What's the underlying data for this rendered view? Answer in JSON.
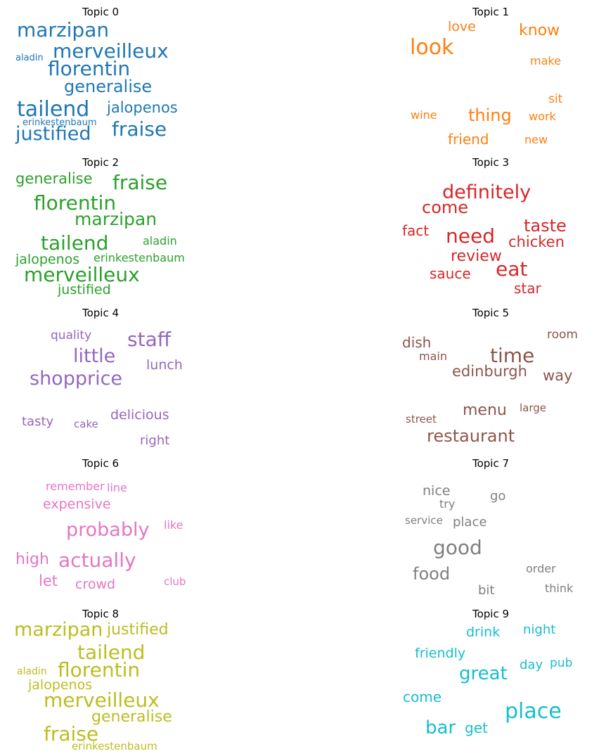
{
  "chart_data": {
    "type": "wordcloud",
    "layout": "5 rows x 2 columns",
    "panels": [
      {
        "title": "Topic 0",
        "color": "#1f77b4",
        "words": [
          "marzipan",
          "merveilleux",
          "florentin",
          "generalise",
          "tailend",
          "jalopenos",
          "fraise",
          "justified",
          "aladin",
          "erinkestenbaum"
        ]
      },
      {
        "title": "Topic 1",
        "color": "#ff7f0e",
        "words": [
          "look",
          "love",
          "know",
          "make",
          "sit",
          "thing",
          "wine",
          "work",
          "friend",
          "new"
        ]
      },
      {
        "title": "Topic 2",
        "color": "#2ca02c",
        "words": [
          "fraise",
          "generalise",
          "florentin",
          "marzipan",
          "tailend",
          "aladin",
          "jalopenos",
          "erinkestenbaum",
          "merveilleux",
          "justified"
        ]
      },
      {
        "title": "Topic 3",
        "color": "#d62728",
        "words": [
          "definitely",
          "come",
          "taste",
          "fact",
          "need",
          "chicken",
          "review",
          "eat",
          "sauce",
          "star"
        ]
      },
      {
        "title": "Topic 4",
        "color": "#9467bd",
        "words": [
          "quality",
          "staff",
          "little",
          "lunch",
          "shopprice",
          "delicious",
          "tasty",
          "cake",
          "right"
        ]
      },
      {
        "title": "Topic 5",
        "color": "#8c564b",
        "words": [
          "room",
          "dish",
          "main",
          "time",
          "edinburgh",
          "way",
          "menu",
          "large",
          "street",
          "restaurant"
        ]
      },
      {
        "title": "Topic 6",
        "color": "#e377c2",
        "words": [
          "remember",
          "line",
          "expensive",
          "probably",
          "like",
          "high",
          "actually",
          "let",
          "crowd",
          "club"
        ]
      },
      {
        "title": "Topic 7",
        "color": "#7f7f7f",
        "words": [
          "nice",
          "go",
          "try",
          "service",
          "place",
          "good",
          "food",
          "order",
          "bit",
          "think"
        ]
      },
      {
        "title": "Topic 8",
        "color": "#bcbd22",
        "words": [
          "marzipan",
          "justified",
          "tailend",
          "florentin",
          "aladin",
          "jalopenos",
          "merveilleux",
          "generalise",
          "fraise",
          "erinkestenbaum"
        ]
      },
      {
        "title": "Topic 9",
        "color": "#17becf",
        "words": [
          "drink",
          "night",
          "friendly",
          "day",
          "pub",
          "great",
          "come",
          "place",
          "bar",
          "get"
        ]
      }
    ]
  }
}
